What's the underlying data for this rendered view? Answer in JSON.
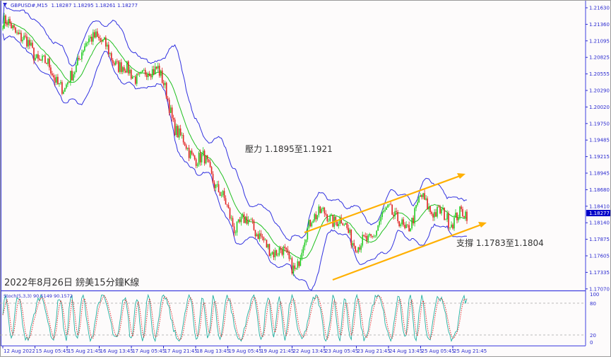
{
  "header": {
    "symbol": "GBPUSD#,M15",
    "ohlc": "1.18287 1.18295 1.18261 1.18277"
  },
  "annotations": {
    "resistance": "壓力 1.1895至1.1921",
    "support": "支撐 1.1783至1.1804",
    "caption": "2022年8月26日 鎊美15分鐘K線"
  },
  "price_axis": {
    "ticks": [
      "1.21630",
      "1.21360",
      "1.21095",
      "1.20825",
      "1.20555",
      "1.20290",
      "1.20020",
      "1.19750",
      "1.19485",
      "1.19215",
      "1.18945",
      "1.18680",
      "1.18410",
      "1.18140",
      "1.17875",
      "1.17605",
      "1.17335",
      "1.17070"
    ],
    "current_price": "1.18277"
  },
  "stoch": {
    "label": "Stoch(5,3,3) 90.5149 90.1572",
    "levels": [
      "100",
      "80",
      "20",
      "0"
    ]
  },
  "time_axis": {
    "ticks": [
      "12 Aug 2022",
      "15 Aug 05:45",
      "15 Aug 21:45",
      "16 Aug 13:45",
      "17 Aug 05:45",
      "17 Aug 21:45",
      "18 Aug 13:45",
      "19 Aug 05:45",
      "19 Aug 21:45",
      "22 Aug 13:45",
      "23 Aug 05:45",
      "23 Aug 21:45",
      "24 Aug 13:45",
      "25 Aug 05:45",
      "25 Aug 21:45"
    ]
  },
  "colors": {
    "axis": "#2a2ad0",
    "bands": "#3030e0",
    "bull": "#22cc22",
    "bear": "#e02020",
    "channel": "#ffb000",
    "current_price_bg": "#0000c8"
  },
  "chart_data": {
    "type": "candlestick",
    "ylim": [
      1.1707,
      1.2163
    ],
    "price_path": [
      1.214,
      1.2123,
      1.2088,
      1.2065,
      1.2025,
      1.2088,
      1.2123,
      1.2082,
      1.2059,
      1.2048,
      1.2071,
      1.1978,
      1.1926,
      1.1915,
      1.1863,
      1.1805,
      1.1817,
      1.1771,
      1.1765,
      1.1736,
      1.1828,
      1.1823,
      1.1811,
      1.1771,
      1.1794,
      1.184,
      1.1794,
      1.1851,
      1.1828,
      1.1817,
      1.18277
    ]
  }
}
